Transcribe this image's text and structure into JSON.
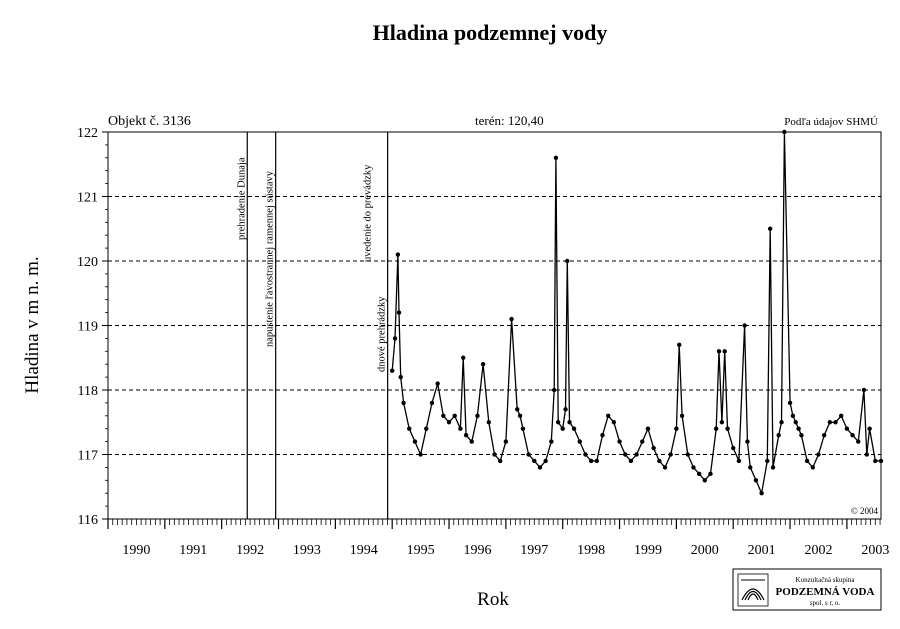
{
  "chart_data": {
    "type": "line",
    "title": "Hladina podzemnej vody",
    "xlabel": "Rok",
    "ylabel": "Hladina v m n. m.",
    "object_label": "Objekt č. 3136",
    "terrain_label": "terén: 120,40",
    "source_label": "Podľa údajov SHMÚ",
    "copyright": "© 2004",
    "xlim": [
      1990,
      2003.6
    ],
    "ylim": [
      116,
      122
    ],
    "grid": "horizontal dashed at 117, 118, 119, 120, 121",
    "x_tick_labels": [
      "1990",
      "1991",
      "1992",
      "1993",
      "1994",
      "1995",
      "1996",
      "1997",
      "1998",
      "1999",
      "2000",
      "2001",
      "2002",
      "2003"
    ],
    "y_tick_labels": [
      "116",
      "117",
      "118",
      "119",
      "120",
      "121",
      "122"
    ],
    "events": [
      {
        "x": 1992.45,
        "label": "prehradenie Dunaja"
      },
      {
        "x": 1992.95,
        "label": "napustenie ľavostrannej ramennej sústavy"
      },
      {
        "x": 1994.92,
        "label": "dnové prehrádzky"
      },
      {
        "x": 1994.92,
        "label": "uvedenie do prevádzky"
      }
    ],
    "series": [
      {
        "x": [
          1995.0,
          1995.05,
          1995.1,
          1995.12,
          1995.15,
          1995.2,
          1995.3,
          1995.4,
          1995.5,
          1995.6,
          1995.7,
          1995.8,
          1995.9,
          1996.0,
          1996.1,
          1996.2,
          1996.25,
          1996.3,
          1996.4,
          1996.5,
          1996.6,
          1996.7,
          1996.8,
          1996.9,
          1997.0,
          1997.1,
          1997.2,
          1997.25,
          1997.3,
          1997.4,
          1997.5,
          1997.6,
          1997.7,
          1997.8,
          1997.85,
          1997.88,
          1997.92,
          1998.0,
          1998.05,
          1998.08,
          1998.12,
          1998.2,
          1998.3,
          1998.4,
          1998.5,
          1998.6,
          1998.7,
          1998.8,
          1998.9,
          1999.0,
          1999.1,
          1999.2,
          1999.3,
          1999.4,
          1999.5,
          1999.6,
          1999.7,
          1999.8,
          1999.9,
          2000.0,
          2000.05,
          2000.1,
          2000.2,
          2000.3,
          2000.4,
          2000.5,
          2000.6,
          2000.7,
          2000.75,
          2000.8,
          2000.85,
          2000.9,
          2001.0,
          2001.1,
          2001.2,
          2001.25,
          2001.3,
          2001.4,
          2001.5,
          2001.6,
          2001.65,
          2001.7,
          2001.8,
          2001.85,
          2001.9,
          2002.0,
          2002.05,
          2002.1,
          2002.15,
          2002.2,
          2002.3,
          2002.4,
          2002.5,
          2002.6,
          2002.7,
          2002.8,
          2002.9,
          2003.0,
          2003.1,
          2003.2,
          2003.3,
          2003.35,
          2003.4,
          2003.5,
          2003.6
        ],
        "values": [
          118.3,
          118.8,
          120.1,
          119.2,
          118.2,
          117.8,
          117.4,
          117.2,
          117.0,
          117.4,
          117.8,
          118.1,
          117.6,
          117.5,
          117.6,
          117.4,
          118.5,
          117.3,
          117.2,
          117.6,
          118.4,
          117.5,
          117.0,
          116.9,
          117.2,
          119.1,
          117.7,
          117.6,
          117.4,
          117.0,
          116.9,
          116.8,
          116.9,
          117.2,
          118.0,
          121.6,
          117.5,
          117.4,
          117.7,
          120.0,
          117.5,
          117.4,
          117.2,
          117.0,
          116.9,
          116.9,
          117.3,
          117.6,
          117.5,
          117.2,
          117.0,
          116.9,
          117.0,
          117.2,
          117.4,
          117.1,
          116.9,
          116.8,
          117.0,
          117.4,
          118.7,
          117.6,
          117.0,
          116.8,
          116.7,
          116.6,
          116.7,
          117.4,
          118.6,
          117.5,
          118.6,
          117.4,
          117.1,
          116.9,
          119.0,
          117.2,
          116.8,
          116.6,
          116.4,
          116.9,
          120.5,
          116.8,
          117.3,
          117.5,
          122.0,
          117.8,
          117.6,
          117.5,
          117.4,
          117.3,
          116.9,
          116.8,
          117.0,
          117.3,
          117.5,
          117.5,
          117.6,
          117.4,
          117.3,
          117.2,
          118.0,
          117.0,
          117.4,
          116.9,
          116.9
        ]
      }
    ]
  },
  "logo": {
    "line1": "Konzultačná skupina",
    "line2": "PODZEMNÁ VODA",
    "line3": "spol. s r. o."
  }
}
